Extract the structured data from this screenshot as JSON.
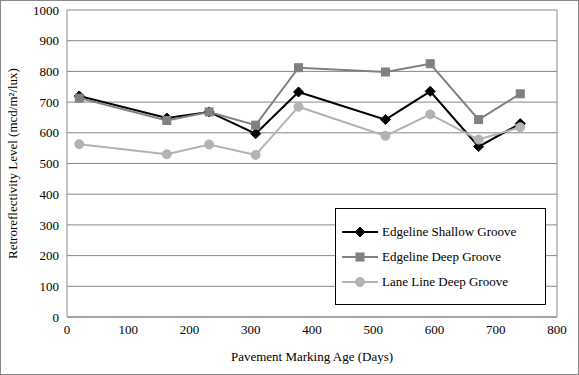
{
  "chart_data": {
    "type": "line",
    "x_label": "Pavement Marking Age (Days)",
    "y_label": "Retroreflectivity Level (mcd/m²/lux)",
    "x": [
      20,
      163,
      232,
      308,
      378,
      520,
      593,
      672,
      740
    ],
    "series": [
      {
        "name": "Edgeline Shallow Groove",
        "color": "#000000",
        "marker": "diamond",
        "values": [
          720,
          648,
          668,
          597,
          733,
          643,
          735,
          555,
          630
        ]
      },
      {
        "name": "Edgeline Deep Groove",
        "color": "#808080",
        "marker": "square",
        "values": [
          713,
          640,
          668,
          625,
          812,
          798,
          825,
          643,
          727
        ]
      },
      {
        "name": "Lane Line Deep Groove",
        "color": "#b3b3b3",
        "marker": "circle",
        "values": [
          563,
          530,
          562,
          528,
          685,
          590,
          660,
          578,
          618
        ]
      }
    ],
    "xlim": [
      0,
      800
    ],
    "xticks": [
      0,
      100,
      200,
      300,
      400,
      500,
      600,
      700,
      800
    ],
    "ylim": [
      0,
      1000
    ],
    "yticks": [
      0,
      100,
      200,
      300,
      400,
      500,
      600,
      700,
      800,
      900,
      1000
    ],
    "grid": true,
    "legend": "lower right"
  }
}
